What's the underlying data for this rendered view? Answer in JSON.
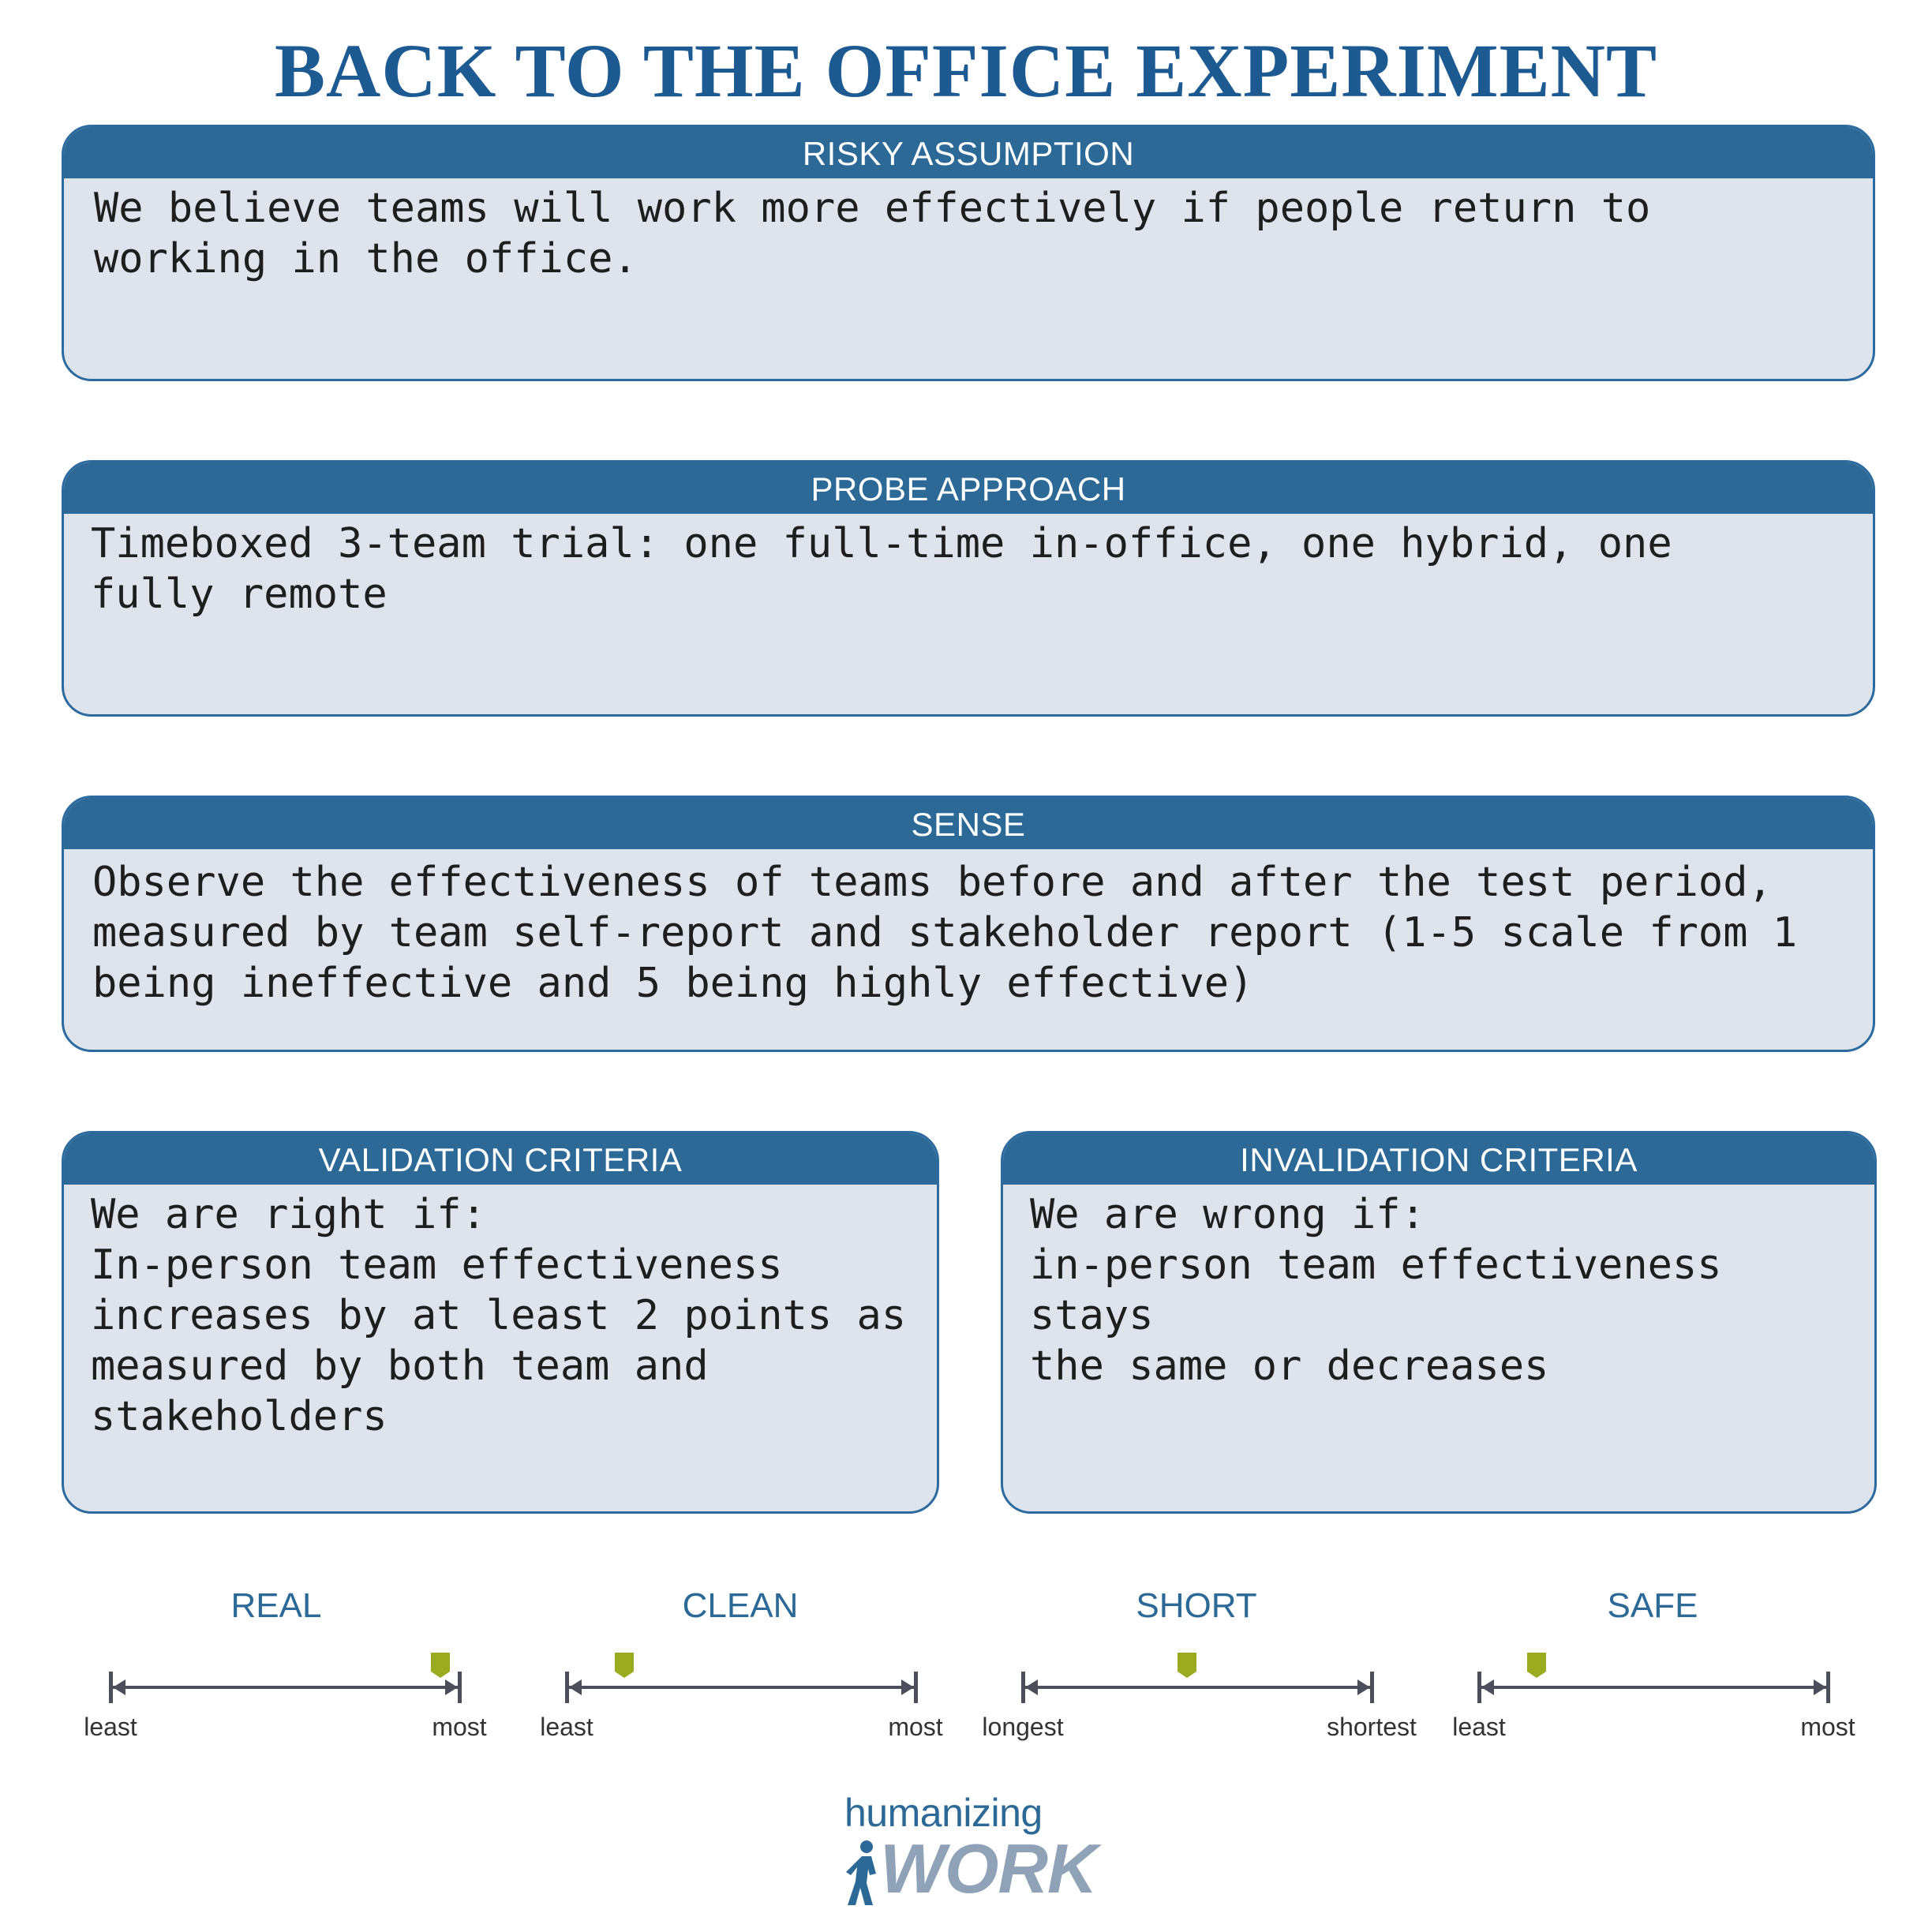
{
  "title": "BACK TO THE OFFICE EXPERIMENT",
  "cards": {
    "risky": {
      "header": "RISKY ASSUMPTION",
      "body": "We believe teams will work more effectively if people return to\nworking in the office."
    },
    "probe": {
      "header": "PROBE APPROACH",
      "body": "Timeboxed 3-team trial: one full-time in-office, one hybrid, one\nfully remote"
    },
    "sense": {
      "header": "SENSE",
      "body": "Observe the effectiveness of teams before and after the test period,\nmeasured by team self-report and stakeholder report (1-5 scale from 1\nbeing ineffective and 5 being highly effective)"
    },
    "validation": {
      "header": "VALIDATION CRITERIA",
      "body": "We are right if:\nIn-person team effectiveness\nincreases by at least 2 points as\nmeasured by both team and\nstakeholders"
    },
    "invalidation": {
      "header": "INVALIDATION CRITERIA",
      "body": "We are wrong if:\nin-person team effectiveness stays\nthe same or decreases"
    }
  },
  "scales": [
    {
      "title": "REAL",
      "left_label": "least",
      "right_label": "most",
      "marker_position": 0.95
    },
    {
      "title": "CLEAN",
      "left_label": "least",
      "right_label": "most",
      "marker_position": 0.16
    },
    {
      "title": "SHORT",
      "left_label": "longest",
      "right_label": "shortest",
      "marker_position": 0.47
    },
    {
      "title": "SAFE",
      "left_label": "least",
      "right_label": "most",
      "marker_position": 0.16
    }
  ],
  "logo": {
    "top_text": "humanizing",
    "bottom_text": "WORK"
  },
  "colors": {
    "title": "#1e5a92",
    "header_bg": "#2d6996",
    "card_bg": "#dfe4ec",
    "marker": "#9aab1f",
    "scale_line": "#4b4f5c"
  }
}
